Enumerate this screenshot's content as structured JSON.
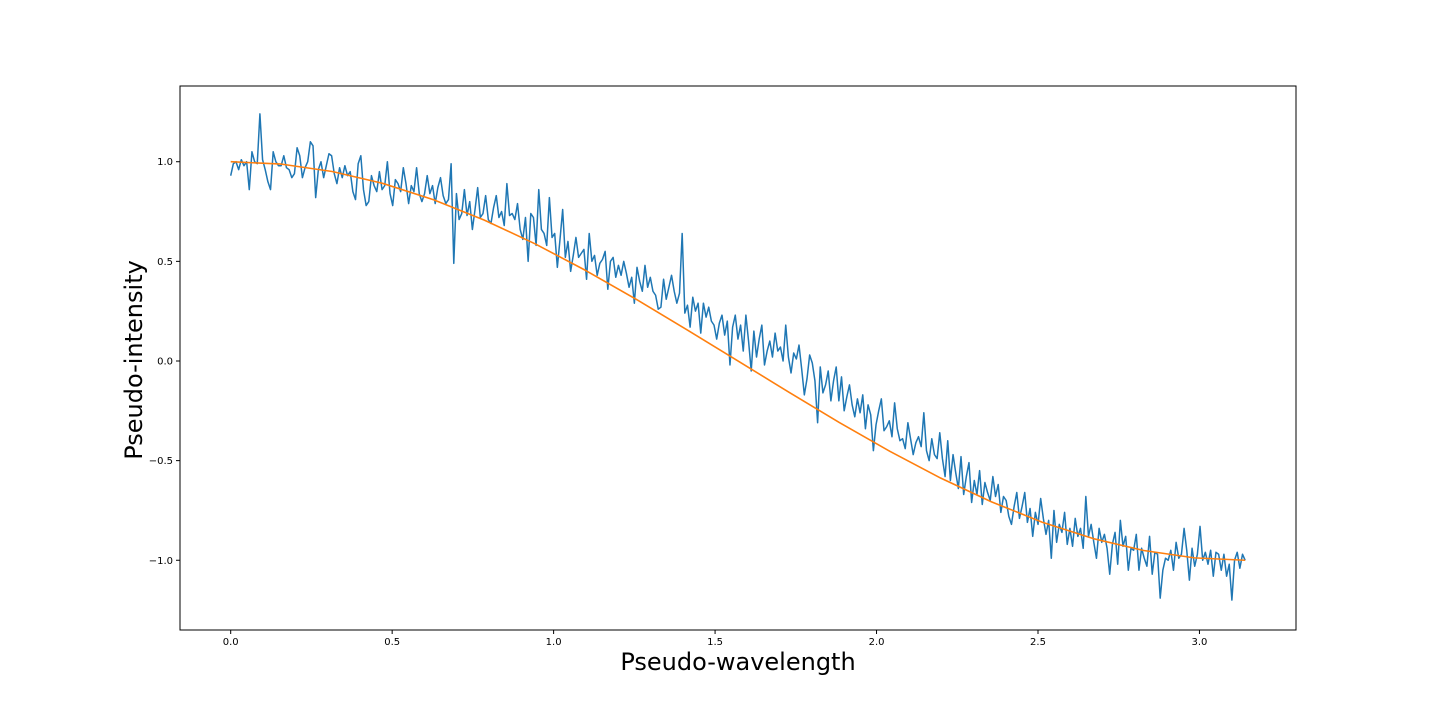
{
  "chart_data": {
    "type": "line",
    "xlabel": "Pseudo-wavelength",
    "ylabel": "Pseudo-intensity",
    "xlim": [
      -0.157,
      3.299
    ],
    "ylim": [
      -1.35,
      1.38
    ],
    "xticks": [
      0.0,
      0.5,
      1.0,
      1.5,
      2.0,
      2.5,
      3.0
    ],
    "xtick_labels": [
      "0.0",
      "0.5",
      "1.0",
      "1.5",
      "2.0",
      "2.5",
      "3.0"
    ],
    "yticks": [
      -1.0,
      -0.5,
      0.0,
      0.5,
      1.0
    ],
    "ytick_labels": [
      "−1.0",
      "−0.5",
      "0.0",
      "0.5",
      "1.0"
    ],
    "grid": false,
    "series": [
      {
        "color": "#1f77b4",
        "x_start": 0.0,
        "x_end": 3.1416,
        "noise_sd": 0.1,
        "y": [
          0.93,
          0.99,
          1.0,
          0.96,
          1.01,
          0.98,
          1.0,
          0.86,
          1.05,
          1.0,
          0.99,
          1.24,
          1.01,
          0.96,
          0.9,
          0.86,
          1.05,
          1.0,
          0.98,
          0.98,
          1.03,
          0.97,
          0.96,
          0.92,
          0.94,
          1.07,
          1.03,
          0.92,
          0.97,
          1.0,
          1.1,
          1.08,
          0.82,
          0.96,
          1.0,
          0.92,
          0.98,
          1.04,
          1.03,
          0.94,
          0.89,
          0.97,
          0.92,
          0.98,
          0.93,
          0.95,
          0.85,
          0.81,
          0.99,
          1.03,
          0.86,
          0.78,
          0.8,
          0.93,
          0.88,
          0.85,
          0.95,
          0.86,
          0.88,
          1.0,
          0.84,
          0.78,
          0.91,
          0.89,
          0.85,
          0.97,
          0.89,
          0.79,
          0.88,
          0.85,
          0.97,
          0.84,
          0.8,
          0.84,
          0.93,
          0.84,
          0.88,
          0.79,
          0.87,
          0.92,
          0.83,
          0.79,
          0.81,
          0.99,
          0.49,
          0.84,
          0.71,
          0.74,
          0.86,
          0.73,
          0.8,
          0.66,
          0.76,
          0.87,
          0.72,
          0.74,
          0.83,
          0.71,
          0.69,
          0.77,
          0.83,
          0.72,
          0.75,
          0.68,
          0.89,
          0.73,
          0.74,
          0.71,
          0.79,
          0.66,
          0.61,
          0.72,
          0.5,
          0.74,
          0.72,
          0.58,
          0.86,
          0.66,
          0.64,
          0.58,
          0.82,
          0.62,
          0.64,
          0.47,
          0.61,
          0.76,
          0.52,
          0.6,
          0.45,
          0.53,
          0.62,
          0.52,
          0.54,
          0.56,
          0.41,
          0.64,
          0.5,
          0.53,
          0.43,
          0.49,
          0.51,
          0.55,
          0.36,
          0.5,
          0.52,
          0.42,
          0.48,
          0.43,
          0.5,
          0.44,
          0.37,
          0.42,
          0.29,
          0.47,
          0.4,
          0.35,
          0.48,
          0.37,
          0.42,
          0.35,
          0.33,
          0.26,
          0.27,
          0.41,
          0.31,
          0.37,
          0.43,
          0.35,
          0.29,
          0.34,
          0.64,
          0.24,
          0.28,
          0.17,
          0.32,
          0.25,
          0.29,
          0.14,
          0.29,
          0.22,
          0.27,
          0.2,
          0.18,
          0.11,
          0.19,
          0.23,
          0.13,
          0.2,
          -0.02,
          0.17,
          0.23,
          0.11,
          0.18,
          0.05,
          0.23,
          0.1,
          -0.05,
          0.15,
          0.02,
          0.11,
          0.18,
          -0.02,
          0.05,
          0.1,
          0.02,
          0.14,
          0.05,
          0.07,
          0.0,
          0.18,
          0.02,
          -0.06,
          0.04,
          0.01,
          0.08,
          -0.04,
          -0.17,
          -0.09,
          0.03,
          -0.01,
          -0.1,
          -0.31,
          -0.03,
          -0.16,
          -0.12,
          -0.05,
          -0.2,
          -0.1,
          -0.03,
          -0.2,
          -0.08,
          -0.25,
          -0.18,
          -0.12,
          -0.22,
          -0.28,
          -0.19,
          -0.26,
          -0.17,
          -0.34,
          -0.22,
          -0.27,
          -0.45,
          -0.32,
          -0.25,
          -0.19,
          -0.35,
          -0.33,
          -0.3,
          -0.38,
          -0.21,
          -0.34,
          -0.4,
          -0.39,
          -0.44,
          -0.31,
          -0.39,
          -0.47,
          -0.41,
          -0.38,
          -0.43,
          -0.26,
          -0.45,
          -0.5,
          -0.39,
          -0.47,
          -0.49,
          -0.36,
          -0.49,
          -0.58,
          -0.4,
          -0.6,
          -0.47,
          -0.56,
          -0.64,
          -0.48,
          -0.67,
          -0.58,
          -0.51,
          -0.71,
          -0.6,
          -0.67,
          -0.55,
          -0.72,
          -0.61,
          -0.66,
          -0.7,
          -0.58,
          -0.68,
          -0.62,
          -0.76,
          -0.68,
          -0.7,
          -0.78,
          -0.82,
          -0.73,
          -0.66,
          -0.79,
          -0.73,
          -0.66,
          -0.81,
          -0.74,
          -0.88,
          -0.76,
          -0.82,
          -0.69,
          -0.79,
          -0.87,
          -0.8,
          -0.99,
          -0.75,
          -0.91,
          -0.82,
          -0.86,
          -0.76,
          -0.92,
          -0.84,
          -0.93,
          -0.79,
          -0.88,
          -0.84,
          -0.94,
          -0.68,
          -0.88,
          -0.82,
          -0.91,
          -0.99,
          -0.84,
          -0.91,
          -0.87,
          -0.94,
          -1.07,
          -0.92,
          -0.86,
          -1.02,
          -0.8,
          -0.93,
          -0.88,
          -1.05,
          -0.94,
          -0.95,
          -0.87,
          -1.05,
          -0.94,
          -0.99,
          -1.03,
          -0.88,
          -1.07,
          -0.96,
          -0.97,
          -1.19,
          -1.05,
          -0.99,
          -1.0,
          -0.95,
          -1.05,
          -0.91,
          -0.99,
          -0.97,
          -0.84,
          -0.95,
          -1.1,
          -0.94,
          -1.03,
          -0.97,
          -0.83,
          -1.0,
          -0.96,
          -1.02,
          -0.95,
          -1.08,
          -0.96,
          -0.97,
          -1.05,
          -0.97,
          -1.08,
          -1.02,
          -1.2,
          -1.0,
          -0.96,
          -1.04,
          -0.97,
          -1.0
        ]
      },
      {
        "color": "#ff7f0e",
        "x": [
          0.0,
          0.1571,
          0.3142,
          0.4712,
          0.6283,
          0.7854,
          0.9425,
          1.0996,
          1.2566,
          1.4137,
          1.5708,
          1.7279,
          1.885,
          2.042,
          2.1991,
          2.3562,
          2.5133,
          2.6704,
          2.8274,
          2.9845,
          3.1416
        ],
        "y": [
          1.0,
          0.988,
          0.951,
          0.891,
          0.809,
          0.707,
          0.588,
          0.454,
          0.309,
          0.156,
          0.0,
          -0.156,
          -0.309,
          -0.454,
          -0.588,
          -0.707,
          -0.809,
          -0.891,
          -0.951,
          -0.988,
          -1.0
        ]
      }
    ]
  }
}
